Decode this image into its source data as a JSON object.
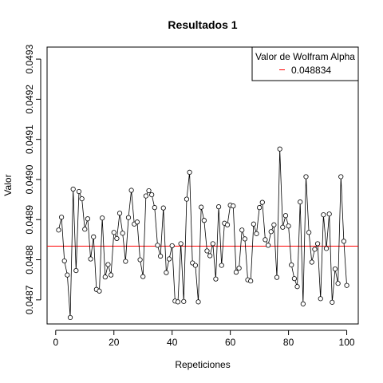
{
  "chart_data": {
    "type": "line",
    "title": "Resultados 1",
    "xlabel": "Repeticiones",
    "ylabel": "Valor",
    "xlim": [
      -2.96,
      103.96
    ],
    "ylim": [
      0.04864,
      0.04933
    ],
    "x_ticks": [
      0,
      20,
      40,
      60,
      80,
      100
    ],
    "y_ticks": [
      0.0487,
      0.0488,
      0.0489,
      0.049,
      0.0491,
      0.0492,
      0.0493
    ],
    "y_tick_labels": [
      "0.0487",
      "0.0488",
      "0.0489",
      "0.0490",
      "0.0491",
      "0.0492",
      "0.0493"
    ],
    "grid": false,
    "legend": {
      "position": "top-right",
      "title": "Valor de Wolfram Alpha",
      "entries": [
        {
          "label": "0.048834",
          "color": "#ff0000"
        }
      ]
    },
    "reference_line": {
      "y": 0.048834,
      "color": "#ff0000"
    },
    "series": [
      {
        "x": [
          1,
          2,
          3,
          4,
          5,
          6,
          7,
          8,
          9,
          10,
          11,
          12,
          13,
          14,
          15,
          16,
          17,
          18,
          19,
          20,
          21,
          22,
          23,
          24,
          25,
          26,
          27,
          28,
          29,
          30,
          31,
          32,
          33,
          34,
          35,
          36,
          37,
          38,
          39,
          40,
          41,
          42,
          43,
          44,
          45,
          46,
          47,
          48,
          49,
          50,
          51,
          52,
          53,
          54,
          55,
          56,
          57,
          58,
          59,
          60,
          61,
          62,
          63,
          64,
          65,
          66,
          67,
          68,
          69,
          70,
          71,
          72,
          73,
          74,
          75,
          76,
          77,
          78,
          79,
          80,
          81,
          82,
          83,
          84,
          85,
          86,
          87,
          88,
          89,
          90,
          91,
          92,
          93,
          94,
          95,
          96,
          97,
          98,
          99,
          100
        ],
        "values": [
          0.048874,
          0.048906,
          0.048797,
          0.048762,
          0.048656,
          0.048976,
          0.048773,
          0.04897,
          0.048952,
          0.048876,
          0.048902,
          0.048802,
          0.048857,
          0.048726,
          0.048722,
          0.048904,
          0.048757,
          0.048788,
          0.048762,
          0.048868,
          0.048853,
          0.048916,
          0.048866,
          0.048796,
          0.048905,
          0.048973,
          0.048889,
          0.048894,
          0.0488,
          0.048758,
          0.048959,
          0.048972,
          0.048962,
          0.04893,
          0.048836,
          0.048809,
          0.048929,
          0.048768,
          0.048802,
          0.048835,
          0.048697,
          0.048695,
          0.04884,
          0.048696,
          0.048951,
          0.049018,
          0.048792,
          0.048786,
          0.048695,
          0.048931,
          0.048898,
          0.048822,
          0.04881,
          0.04884,
          0.048752,
          0.048932,
          0.048786,
          0.048891,
          0.048887,
          0.048936,
          0.048934,
          0.048769,
          0.048779,
          0.048874,
          0.048852,
          0.04875,
          0.048747,
          0.048889,
          0.048865,
          0.04893,
          0.048943,
          0.04885,
          0.048836,
          0.04887,
          0.048887,
          0.048756,
          0.049076,
          0.048881,
          0.04891,
          0.048884,
          0.048787,
          0.048753,
          0.048733,
          0.048944,
          0.04869,
          0.049007,
          0.048868,
          0.048794,
          0.048826,
          0.04884,
          0.048703,
          0.048912,
          0.048828,
          0.048914,
          0.048694,
          0.048777,
          0.048741,
          0.049007,
          0.048846,
          0.048736
        ],
        "color": "#000000"
      }
    ]
  }
}
